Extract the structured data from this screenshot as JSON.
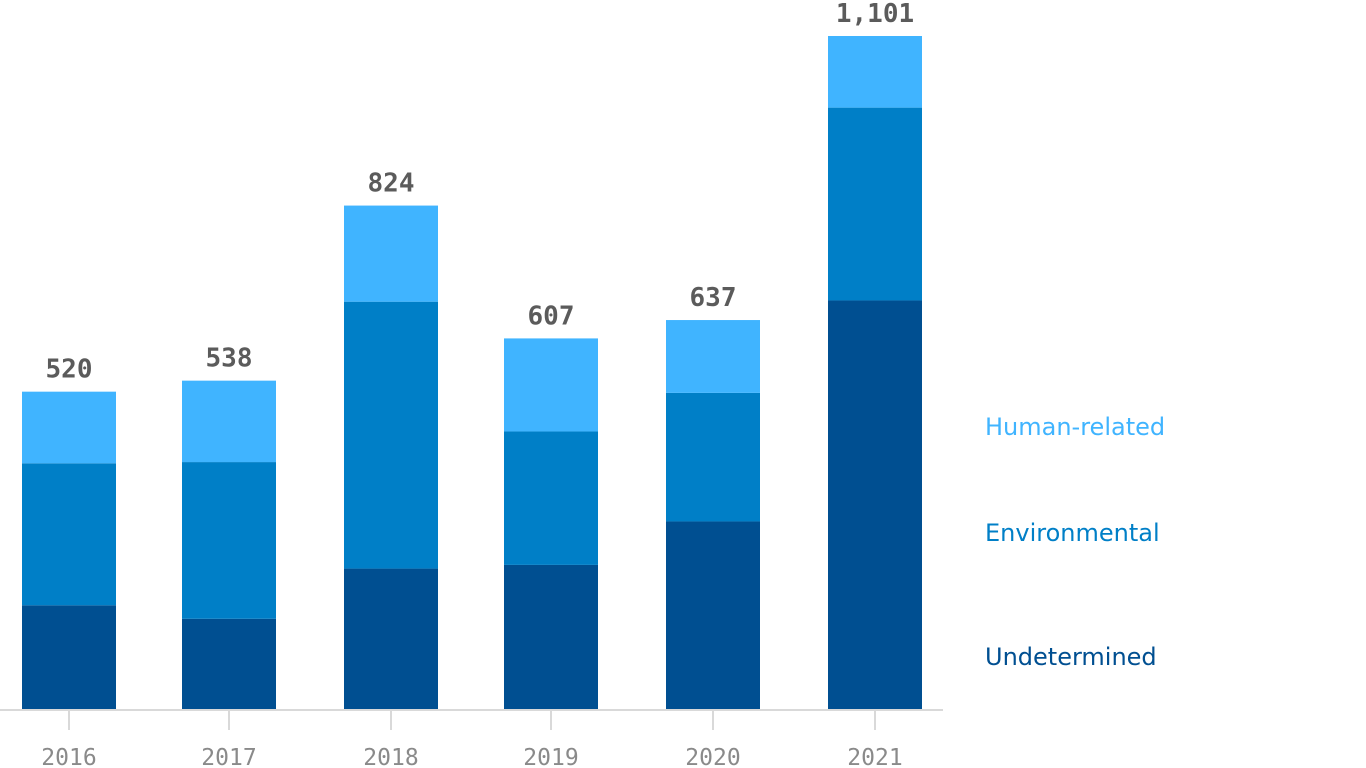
{
  "chart_data": {
    "type": "bar",
    "stacked": true,
    "categories": [
      "2016",
      "2017",
      "2018",
      "2019",
      "2020",
      "2021"
    ],
    "series": [
      {
        "name": "Undetermined",
        "color": "#004f91",
        "values": [
          171,
          149,
          231,
          237,
          308,
          669
        ]
      },
      {
        "name": "Environmental",
        "color": "#007fc7",
        "values": [
          232,
          256,
          436,
          218,
          210,
          315
        ]
      },
      {
        "name": "Human-related",
        "color": "#40b4ff",
        "values": [
          117,
          133,
          157,
          152,
          119,
          117
        ]
      }
    ],
    "totals": [
      "520",
      "538",
      "824",
      "607",
      "637",
      "1,101"
    ],
    "ylim": [
      0,
      1101
    ],
    "title": "",
    "xlabel": "",
    "ylabel": "",
    "legend_position": "right",
    "grid": false
  },
  "colors": {
    "axis": "#d9d9d9",
    "total_label": "#5b5b5b",
    "tick_label": "#8a8a8a"
  }
}
